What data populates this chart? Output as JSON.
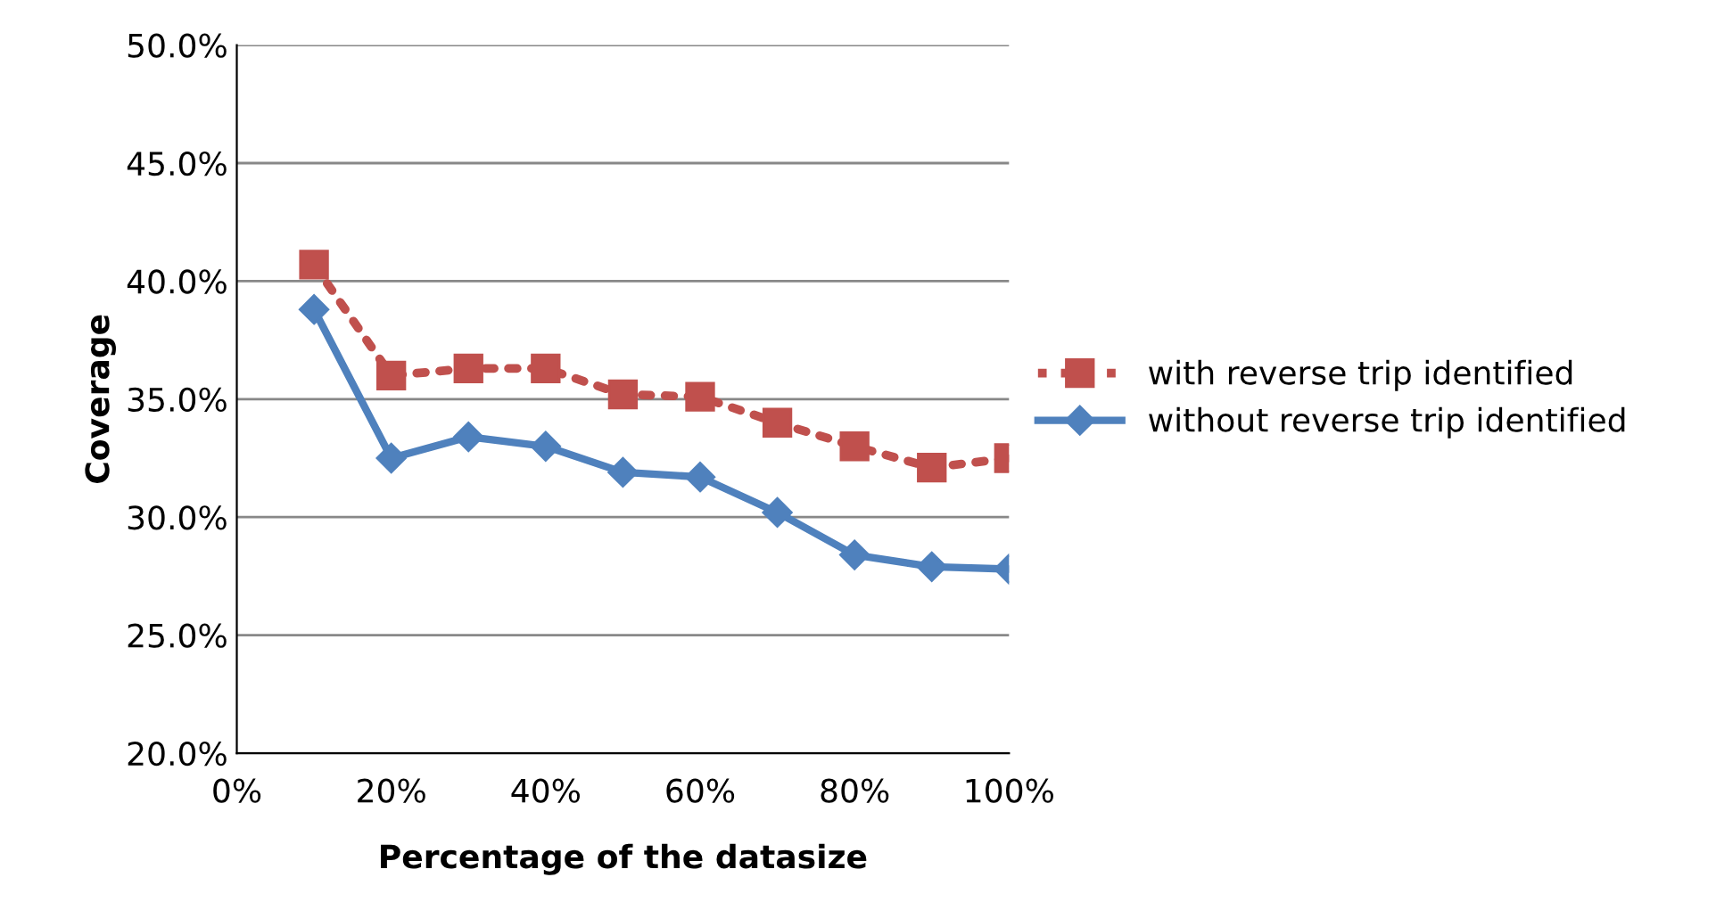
{
  "chart_data": {
    "type": "line",
    "xlabel": "Percentage of the datasize",
    "ylabel": "Coverage",
    "x": [
      10,
      20,
      30,
      40,
      50,
      60,
      70,
      80,
      90,
      100
    ],
    "series": [
      {
        "name": "with reverse trip identified",
        "color": "#c0504d",
        "marker": "square",
        "line_style": "dotted",
        "values": [
          40.7,
          36.0,
          36.3,
          36.3,
          35.2,
          35.1,
          34.0,
          33.0,
          32.1,
          32.5
        ]
      },
      {
        "name": "without reverse trip identified",
        "color": "#4f81bd",
        "marker": "diamond",
        "line_style": "solid",
        "values": [
          38.8,
          32.5,
          33.4,
          33.0,
          31.9,
          31.7,
          30.2,
          28.4,
          27.9,
          27.8
        ]
      }
    ],
    "xlim": [
      0,
      100
    ],
    "xticks": [
      {
        "value": 0,
        "label": "0%"
      },
      {
        "value": 20,
        "label": "20%"
      },
      {
        "value": 40,
        "label": "40%"
      },
      {
        "value": 60,
        "label": "60%"
      },
      {
        "value": 80,
        "label": "80%"
      },
      {
        "value": 100,
        "label": "100%"
      }
    ],
    "ylim": [
      20,
      50
    ],
    "yticks": [
      {
        "value": 20,
        "label": "20.0%"
      },
      {
        "value": 25,
        "label": "25.0%"
      },
      {
        "value": 30,
        "label": "30.0%"
      },
      {
        "value": 35,
        "label": "35.0%"
      },
      {
        "value": 40,
        "label": "40.0%"
      },
      {
        "value": 45,
        "label": "45.0%"
      },
      {
        "value": 50,
        "label": "50.0%"
      }
    ],
    "grid": "y",
    "legend": "right"
  }
}
